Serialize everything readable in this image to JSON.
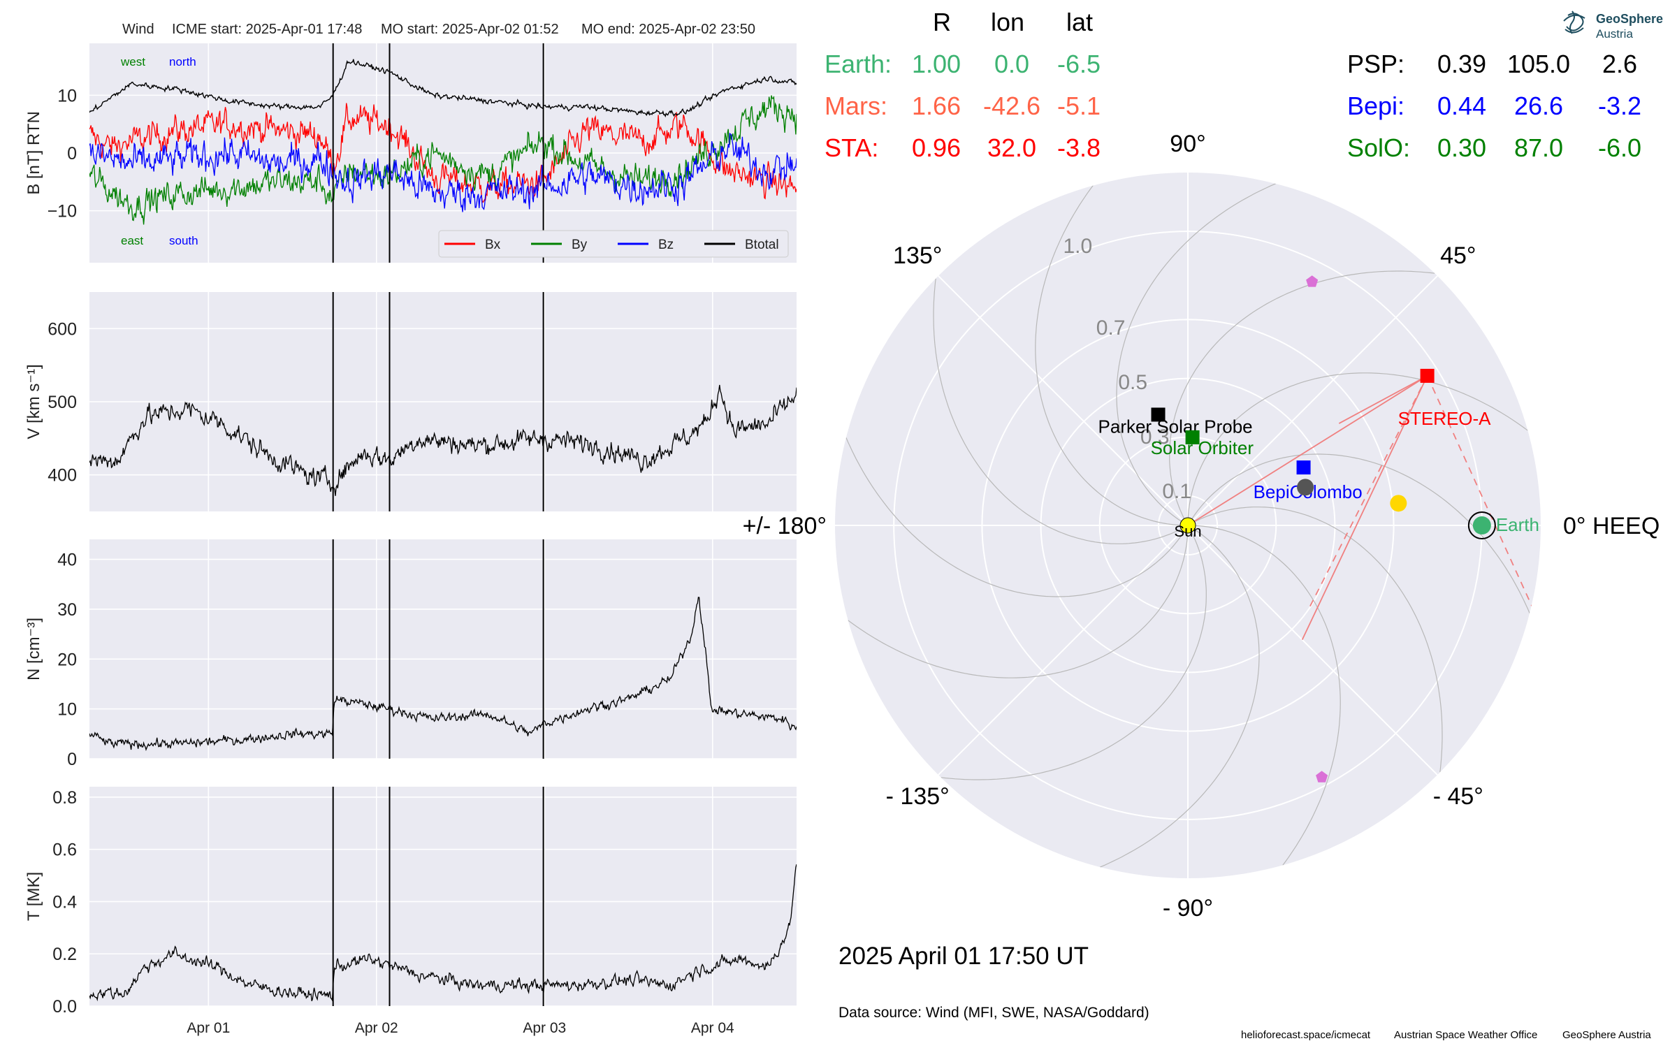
{
  "colors": {
    "panel_bg": "#eaeaf2",
    "grid": "#ffffff",
    "earth": "#3cb371",
    "mars": "#ff6347",
    "sta": "#ff0000",
    "psp": "#000000",
    "bepi": "#0000ff",
    "solo": "#008000",
    "bx": "#ff0000",
    "by": "#008000",
    "bz": "#0000ff",
    "btotal": "#000000",
    "sun": "#ffff00",
    "yellow_marker": "#ffd700",
    "pentagon": "#da70d6",
    "gray_dot": "#555555"
  },
  "header": {
    "spacecraft": "Wind",
    "icme_start": "ICME start: 2025-Apr-01 17:48",
    "mo_start": "MO start: 2025-Apr-02 01:52",
    "mo_end": "MO end: 2025-Apr-02 23:50"
  },
  "logo": {
    "line1": "GeoSphere",
    "line2": "Austria"
  },
  "table": {
    "headers": [
      "R",
      "lon",
      "lat"
    ],
    "left_rows": [
      {
        "name": "Earth:",
        "R": "1.00",
        "lon": "0.0",
        "lat": "-6.5",
        "color_key": "earth"
      },
      {
        "name": "Mars:",
        "R": "1.66",
        "lon": "-42.6",
        "lat": "-5.1",
        "color_key": "mars"
      },
      {
        "name": "STA:",
        "R": "0.96",
        "lon": "32.0",
        "lat": "-3.8",
        "color_key": "sta"
      }
    ],
    "right_rows": [
      {
        "name": "PSP:",
        "R": "0.39",
        "lon": "105.0",
        "lat": "2.6",
        "color_key": "psp"
      },
      {
        "name": "Bepi:",
        "R": "0.44",
        "lon": "26.6",
        "lat": "-3.2",
        "color_key": "bepi"
      },
      {
        "name": "SolO:",
        "R": "0.30",
        "lon": "87.0",
        "lat": "-6.0",
        "color_key": "solo"
      }
    ]
  },
  "timestamp": "2025 April 01  17:50 UT",
  "data_source": "Data source: Wind (MFI, SWE, NASA/Goddard)",
  "footer": {
    "site": "helioforecast.space/icmecat",
    "office": "Austrian Space Weather Office",
    "org": "GeoSphere Austria"
  },
  "chart_data": [
    {
      "type": "line",
      "panel": "B",
      "ylabel": "B [nT] RTN",
      "ylim": [
        -19,
        19
      ],
      "yticks": [
        -10,
        0,
        10
      ],
      "ytick_labels": [
        "−10",
        "0",
        "10"
      ],
      "x_range": [
        "2025-03-31T07:00",
        "2025-04-04T12:00"
      ],
      "xticks": [
        "2025-04-01",
        "2025-04-02",
        "2025-04-03",
        "2025-04-04"
      ],
      "xtick_labels": [
        "Apr 01",
        "Apr 02",
        "Apr 03",
        "Apr 04"
      ],
      "vlines": [
        "2025-04-01T17:48",
        "2025-04-02T01:52",
        "2025-04-02T23:50"
      ],
      "annotations": {
        "west": "west",
        "north": "north",
        "east": "east",
        "south": "south"
      },
      "legend": {
        "placement": "lower-right",
        "entries": [
          "Bx",
          "By",
          "Bz",
          "Btotal"
        ]
      },
      "grid": true,
      "series": [
        {
          "name": "Bx",
          "color_key": "bx",
          "noise": 2.2,
          "points": [
            [
              "2025-03-31T07:00",
              3
            ],
            [
              "2025-03-31T10:00",
              1
            ],
            [
              "2025-03-31T13:00",
              2
            ],
            [
              "2025-03-31T20:00",
              4
            ],
            [
              "2025-04-01T03:00",
              5
            ],
            [
              "2025-04-01T10:00",
              4
            ],
            [
              "2025-04-01T16:00",
              3
            ],
            [
              "2025-04-01T17:48",
              -2
            ],
            [
              "2025-04-01T20:00",
              6
            ],
            [
              "2025-04-02T01:52",
              5
            ],
            [
              "2025-04-02T08:00",
              -4
            ],
            [
              "2025-04-02T16:00",
              -6
            ],
            [
              "2025-04-02T23:50",
              -5
            ],
            [
              "2025-04-03T06:00",
              4
            ],
            [
              "2025-04-03T14:00",
              2
            ],
            [
              "2025-04-03T20:00",
              5
            ],
            [
              "2025-04-04T02:00",
              -3
            ],
            [
              "2025-04-04T08:00",
              -5
            ],
            [
              "2025-04-04T12:00",
              -6
            ]
          ]
        },
        {
          "name": "By",
          "color_key": "by",
          "noise": 2.2,
          "points": [
            [
              "2025-03-31T07:00",
              -4
            ],
            [
              "2025-03-31T13:00",
              -9
            ],
            [
              "2025-03-31T20:00",
              -7
            ],
            [
              "2025-04-01T03:00",
              -6
            ],
            [
              "2025-04-01T10:00",
              -5
            ],
            [
              "2025-04-01T16:00",
              -5
            ],
            [
              "2025-04-01T17:48",
              -8
            ],
            [
              "2025-04-01T20:00",
              -3
            ],
            [
              "2025-04-02T01:52",
              -4
            ],
            [
              "2025-04-02T08:00",
              0
            ],
            [
              "2025-04-02T16:00",
              -4
            ],
            [
              "2025-04-02T23:50",
              2
            ],
            [
              "2025-04-03T06:00",
              -2
            ],
            [
              "2025-04-03T14:00",
              -5
            ],
            [
              "2025-04-03T20:00",
              -3
            ],
            [
              "2025-04-04T02:00",
              3
            ],
            [
              "2025-04-04T08:00",
              8
            ],
            [
              "2025-04-04T12:00",
              7
            ]
          ]
        },
        {
          "name": "Bz",
          "color_key": "bz",
          "noise": 2.5,
          "points": [
            [
              "2025-03-31T07:00",
              0
            ],
            [
              "2025-03-31T13:00",
              -2
            ],
            [
              "2025-03-31T20:00",
              -1
            ],
            [
              "2025-04-01T03:00",
              0
            ],
            [
              "2025-04-01T10:00",
              -2
            ],
            [
              "2025-04-01T16:00",
              -1
            ],
            [
              "2025-04-01T17:48",
              -3
            ],
            [
              "2025-04-01T20:00",
              -5
            ],
            [
              "2025-04-02T01:52",
              -3
            ],
            [
              "2025-04-02T08:00",
              -7
            ],
            [
              "2025-04-02T16:00",
              -7
            ],
            [
              "2025-04-02T23:50",
              -6
            ],
            [
              "2025-04-03T06:00",
              -4
            ],
            [
              "2025-04-03T14:00",
              -6
            ],
            [
              "2025-04-03T20:00",
              -5
            ],
            [
              "2025-04-04T02:00",
              1
            ],
            [
              "2025-04-04T08:00",
              -3
            ],
            [
              "2025-04-04T12:00",
              -2
            ]
          ]
        },
        {
          "name": "Btotal",
          "color_key": "btotal",
          "noise": 0.4,
          "points": [
            [
              "2025-03-31T07:00",
              7
            ],
            [
              "2025-03-31T13:00",
              12
            ],
            [
              "2025-03-31T20:00",
              11
            ],
            [
              "2025-04-01T03:00",
              9
            ],
            [
              "2025-04-01T10:00",
              8
            ],
            [
              "2025-04-01T16:00",
              8
            ],
            [
              "2025-04-01T17:48",
              10
            ],
            [
              "2025-04-01T20:00",
              16
            ],
            [
              "2025-04-02T01:52",
              14
            ],
            [
              "2025-04-02T08:00",
              10
            ],
            [
              "2025-04-02T16:00",
              9
            ],
            [
              "2025-04-02T23:50",
              8
            ],
            [
              "2025-04-03T06:00",
              8
            ],
            [
              "2025-04-03T14:00",
              7
            ],
            [
              "2025-04-03T20:00",
              7
            ],
            [
              "2025-04-04T02:00",
              11
            ],
            [
              "2025-04-04T08:00",
              13
            ],
            [
              "2025-04-04T12:00",
              12
            ]
          ]
        }
      ]
    },
    {
      "type": "line",
      "panel": "V",
      "ylabel": "V [km s⁻¹]",
      "ylim": [
        350,
        650
      ],
      "yticks": [
        400,
        500,
        600
      ],
      "ytick_labels": [
        "400",
        "500",
        "600"
      ],
      "x_range": [
        "2025-03-31T07:00",
        "2025-04-04T12:00"
      ],
      "xticks": [
        "2025-04-01",
        "2025-04-02",
        "2025-04-03",
        "2025-04-04"
      ],
      "vlines": [
        "2025-04-01T17:48",
        "2025-04-02T01:52",
        "2025-04-02T23:50"
      ],
      "grid": true,
      "series": [
        {
          "name": "V",
          "color_key": "btotal",
          "noise": 12,
          "points": [
            [
              "2025-03-31T07:00",
              420
            ],
            [
              "2025-03-31T11:00",
              420
            ],
            [
              "2025-03-31T15:00",
              480
            ],
            [
              "2025-03-31T21:00",
              490
            ],
            [
              "2025-04-01T02:00",
              470
            ],
            [
              "2025-04-01T08:00",
              430
            ],
            [
              "2025-04-01T14:00",
              400
            ],
            [
              "2025-04-01T17:48",
              390
            ],
            [
              "2025-04-01T22:00",
              430
            ],
            [
              "2025-04-02T01:52",
              420
            ],
            [
              "2025-04-02T06:00",
              450
            ],
            [
              "2025-04-02T14:00",
              440
            ],
            [
              "2025-04-02T23:50",
              450
            ],
            [
              "2025-04-03T08:00",
              440
            ],
            [
              "2025-04-03T14:00",
              420
            ],
            [
              "2025-04-03T20:00",
              450
            ],
            [
              "2025-04-03T23:00",
              470
            ],
            [
              "2025-04-04T01:00",
              520
            ],
            [
              "2025-04-04T03:00",
              460
            ],
            [
              "2025-04-04T08:00",
              470
            ],
            [
              "2025-04-04T12:00",
              510
            ]
          ]
        }
      ]
    },
    {
      "type": "line",
      "panel": "N",
      "ylabel": "N [cm⁻³]",
      "ylim": [
        0,
        44
      ],
      "yticks": [
        0,
        10,
        20,
        30,
        40
      ],
      "ytick_labels": [
        "0",
        "10",
        "20",
        "30",
        "40"
      ],
      "x_range": [
        "2025-03-31T07:00",
        "2025-04-04T12:00"
      ],
      "xticks": [
        "2025-04-01",
        "2025-04-02",
        "2025-04-03",
        "2025-04-04"
      ],
      "vlines": [
        "2025-04-01T17:48",
        "2025-04-02T01:52",
        "2025-04-02T23:50"
      ],
      "grid": true,
      "series": [
        {
          "name": "N",
          "color_key": "btotal",
          "noise": 0.8,
          "points": [
            [
              "2025-03-31T07:00",
              5
            ],
            [
              "2025-03-31T10:00",
              3
            ],
            [
              "2025-03-31T20:00",
              3
            ],
            [
              "2025-04-01T06:00",
              4
            ],
            [
              "2025-04-01T12:00",
              5
            ],
            [
              "2025-04-01T17:40",
              5
            ],
            [
              "2025-04-01T18:00",
              12
            ],
            [
              "2025-04-02T01:52",
              10
            ],
            [
              "2025-04-02T08:00",
              8
            ],
            [
              "2025-04-02T16:00",
              9
            ],
            [
              "2025-04-02T22:00",
              5
            ],
            [
              "2025-04-02T23:50",
              7
            ],
            [
              "2025-04-03T06:00",
              10
            ],
            [
              "2025-04-03T12:00",
              12
            ],
            [
              "2025-04-03T18:00",
              16
            ],
            [
              "2025-04-03T21:00",
              25
            ],
            [
              "2025-04-03T22:00",
              33
            ],
            [
              "2025-04-03T23:00",
              22
            ],
            [
              "2025-04-03T23:45",
              10
            ],
            [
              "2025-04-04T04:00",
              9
            ],
            [
              "2025-04-04T10:00",
              8
            ],
            [
              "2025-04-04T12:00",
              6
            ]
          ]
        }
      ]
    },
    {
      "type": "line",
      "panel": "T",
      "ylabel": "T [MK]",
      "ylim": [
        0,
        0.84
      ],
      "yticks": [
        0,
        0.2,
        0.4,
        0.6,
        0.8
      ],
      "ytick_labels": [
        "0.0",
        "0.2",
        "0.4",
        "0.6",
        "0.8"
      ],
      "x_range": [
        "2025-03-31T07:00",
        "2025-04-04T12:00"
      ],
      "xticks": [
        "2025-04-01",
        "2025-04-02",
        "2025-04-03",
        "2025-04-04"
      ],
      "xtick_labels": [
        "Apr 01",
        "Apr 02",
        "Apr 03",
        "Apr 04"
      ],
      "vlines": [
        "2025-04-01T17:48",
        "2025-04-02T01:52",
        "2025-04-02T23:50"
      ],
      "grid": true,
      "series": [
        {
          "name": "T",
          "color_key": "btotal",
          "noise": 0.02,
          "points": [
            [
              "2025-03-31T07:00",
              0.05
            ],
            [
              "2025-03-31T12:00",
              0.05
            ],
            [
              "2025-03-31T15:00",
              0.15
            ],
            [
              "2025-03-31T19:00",
              0.2
            ],
            [
              "2025-04-01T01:00",
              0.15
            ],
            [
              "2025-04-01T06:00",
              0.08
            ],
            [
              "2025-04-01T12:00",
              0.05
            ],
            [
              "2025-04-01T17:40",
              0.04
            ],
            [
              "2025-04-01T18:00",
              0.15
            ],
            [
              "2025-04-01T23:00",
              0.18
            ],
            [
              "2025-04-02T06:00",
              0.12
            ],
            [
              "2025-04-02T14:00",
              0.08
            ],
            [
              "2025-04-02T22:00",
              0.08
            ],
            [
              "2025-04-03T04:00",
              0.08
            ],
            [
              "2025-04-03T12:00",
              0.1
            ],
            [
              "2025-04-03T18:00",
              0.08
            ],
            [
              "2025-04-03T22:00",
              0.14
            ],
            [
              "2025-04-04T04:00",
              0.18
            ],
            [
              "2025-04-04T08:00",
              0.15
            ],
            [
              "2025-04-04T11:00",
              0.3
            ],
            [
              "2025-04-04T12:00",
              0.55
            ]
          ]
        }
      ]
    },
    {
      "type": "scatter",
      "panel": "polar",
      "r_ticks": [
        0.1,
        0.3,
        0.5,
        0.7,
        1.0
      ],
      "r_tick_labels": [
        "0.1",
        "0.3",
        "0.5",
        "0.7",
        "1.0"
      ],
      "r_max": 1.2,
      "angle_ticks_deg": [
        0,
        45,
        90,
        135,
        180,
        -135,
        -90,
        -45
      ],
      "angle_labels": [
        "0° HEEQ",
        "45°",
        "90°",
        "135°",
        "+/- 180°",
        "- 135°",
        "- 90°",
        "- 45°"
      ],
      "grid": true,
      "points": [
        {
          "name": "Sun",
          "label": "Sun",
          "r": 0.0,
          "lon_deg": 0.0,
          "marker": "circle",
          "color_key": "sun"
        },
        {
          "name": "Earth",
          "label": "Earth",
          "r": 1.0,
          "lon_deg": 0.0,
          "marker": "circle-ring",
          "color_key": "earth"
        },
        {
          "name": "STEREO-A",
          "label": "STEREO-A",
          "r": 0.96,
          "lon_deg": 32.0,
          "marker": "square",
          "color_key": "sta"
        },
        {
          "name": "Parker Solar Probe",
          "label": "Parker Solar Probe",
          "r": 0.39,
          "lon_deg": 105.0,
          "marker": "square",
          "color_key": "psp"
        },
        {
          "name": "BepiColombo",
          "label": "BepiColombo",
          "r": 0.44,
          "lon_deg": 26.6,
          "marker": "square",
          "color_key": "bepi"
        },
        {
          "name": "Solar Orbiter",
          "label": "Solar Orbiter",
          "r": 0.3,
          "lon_deg": 87.0,
          "marker": "square",
          "color_key": "solo"
        },
        {
          "name": "yellow body",
          "label": "",
          "r": 0.72,
          "lon_deg": 6.0,
          "marker": "circle",
          "color_key": "yellow_marker"
        },
        {
          "name": "gray body",
          "label": "",
          "r": 0.42,
          "lon_deg": 18.0,
          "marker": "circle",
          "color_key": "gray_dot"
        },
        {
          "name": "pentagon north",
          "label": "",
          "r": 0.93,
          "lon_deg": 63.0,
          "marker": "pentagon",
          "color_key": "pentagon"
        },
        {
          "name": "pentagon south",
          "label": "",
          "r": 0.97,
          "lon_deg": -62.0,
          "marker": "pentagon",
          "color_key": "pentagon"
        }
      ]
    }
  ]
}
